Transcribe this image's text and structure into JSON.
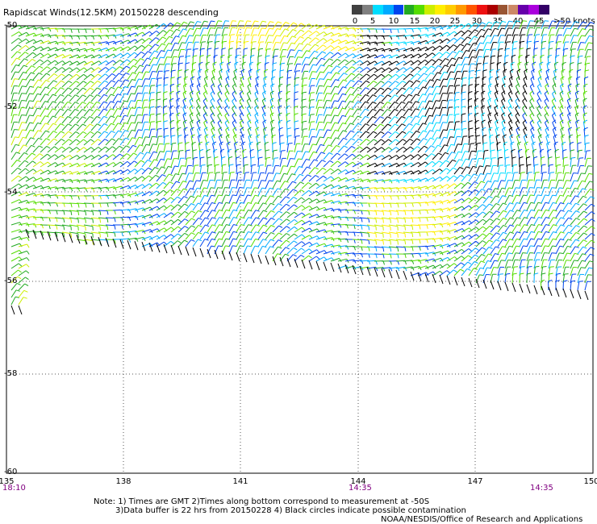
{
  "title": "Rapidscat Winds(12.5KM) 20150228 descending",
  "legend": {
    "colors": [
      "#404040",
      "#808080",
      "#00ddff",
      "#00aaff",
      "#0044ee",
      "#22aa22",
      "#55dd00",
      "#ccee00",
      "#ffee00",
      "#ffcc00",
      "#ff9900",
      "#ff5500",
      "#ee1111",
      "#aa0000",
      "#995533",
      "#cc8866",
      "#6600aa",
      "#aa00dd",
      "#330066"
    ],
    "ticks": [
      "0",
      "5",
      "10",
      "15",
      "20",
      "25",
      "30",
      "35",
      "40",
      "45",
      ">50 knots"
    ]
  },
  "axes": {
    "x_ticks": [
      "135",
      "138",
      "141",
      "144",
      "147",
      "150"
    ],
    "y_ticks": [
      "-50",
      "-52",
      "-54",
      "-56",
      "-58",
      "-60"
    ],
    "x_range": [
      135,
      150
    ],
    "y_range": [
      -60,
      -50
    ]
  },
  "times": [
    "18:10",
    "14:35",
    "14:35"
  ],
  "notes": {
    "line1": "Note: 1) Times are GMT 2)Times along bottom correspond to measurement at -50S",
    "line2": "3)Data buffer is 22 hrs from 20150228 4) Black circles indicate possible contamination",
    "credit": "NOAA/NESDIS/Office of Research and Applications"
  }
}
